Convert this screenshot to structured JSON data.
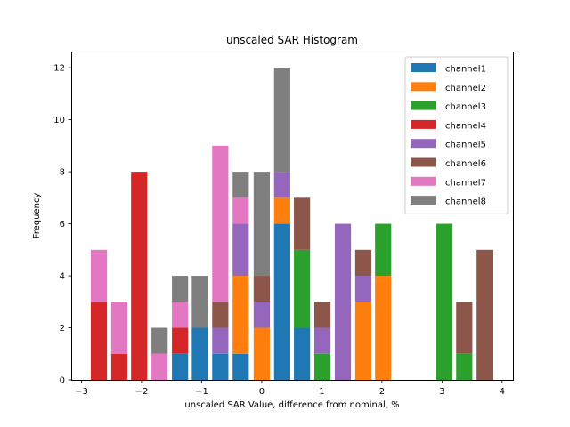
{
  "chart_data": {
    "type": "bar",
    "stacked": true,
    "title": "unscaled SAR Histogram",
    "xlabel": "unscaled SAR Value, difference from nominal, %",
    "ylabel": "Frequency",
    "xlim": [
      -3.17,
      4.18
    ],
    "ylim": [
      0,
      12.62
    ],
    "bin_width": 0.337,
    "xticks": [
      -3,
      -2,
      -1,
      0,
      1,
      2,
      3,
      4
    ],
    "xtick_labels": [
      "−3",
      "−2",
      "−1",
      "0",
      "1",
      "2",
      "3",
      "4"
    ],
    "yticks": [
      0,
      2,
      4,
      6,
      8,
      10,
      12
    ],
    "ytick_labels": [
      "0",
      "2",
      "4",
      "6",
      "8",
      "10",
      "12"
    ],
    "grid": false,
    "legend_position": "top-right",
    "bin_centers": [
      -2.71,
      -2.37,
      -2.04,
      -1.7,
      -1.36,
      -1.03,
      -0.69,
      -0.35,
      0.0,
      0.34,
      0.67,
      1.01,
      1.35,
      1.69,
      2.02,
      2.36,
      2.7,
      3.04,
      3.37,
      3.71
    ],
    "series": [
      {
        "name": "channel1",
        "color": "#1f77b4",
        "values": [
          0,
          0,
          0,
          0,
          1,
          2,
          1,
          1,
          0,
          6,
          2,
          0,
          0,
          0,
          0,
          0,
          0,
          0,
          0,
          0
        ]
      },
      {
        "name": "channel2",
        "color": "#ff7f0e",
        "values": [
          0,
          0,
          0,
          0,
          0,
          0,
          0,
          3,
          2,
          1,
          0,
          0,
          0,
          3,
          4,
          0,
          0,
          0,
          0,
          0
        ]
      },
      {
        "name": "channel3",
        "color": "#2ca02c",
        "values": [
          0,
          0,
          0,
          0,
          0,
          0,
          0,
          0,
          0,
          0,
          3,
          1,
          0,
          0,
          2,
          0,
          0,
          6,
          1,
          0
        ]
      },
      {
        "name": "channel4",
        "color": "#d62728",
        "values": [
          3,
          1,
          8,
          0,
          1,
          0,
          0,
          0,
          0,
          0,
          0,
          0,
          0,
          0,
          0,
          0,
          0,
          0,
          0,
          0
        ]
      },
      {
        "name": "channel5",
        "color": "#9467bd",
        "values": [
          0,
          0,
          0,
          0,
          0,
          0,
          1,
          2,
          1,
          1,
          0,
          1,
          6,
          1,
          0,
          0,
          0,
          0,
          0,
          0
        ]
      },
      {
        "name": "channel6",
        "color": "#8c564b",
        "values": [
          0,
          0,
          0,
          0,
          0,
          0,
          1,
          0,
          1,
          0,
          2,
          1,
          0,
          1,
          0,
          0,
          0,
          0,
          2,
          5
        ]
      },
      {
        "name": "channel7",
        "color": "#e377c2",
        "values": [
          2,
          2,
          0,
          1,
          1,
          0,
          6,
          1,
          0,
          0,
          0,
          0,
          0,
          0,
          0,
          0,
          0,
          0,
          0,
          0
        ]
      },
      {
        "name": "channel8",
        "color": "#7f7f7f",
        "values": [
          0,
          0,
          0,
          1,
          1,
          2,
          0,
          1,
          4,
          4,
          0,
          0,
          0,
          0,
          0,
          0,
          0,
          0,
          0,
          0
        ]
      }
    ]
  }
}
